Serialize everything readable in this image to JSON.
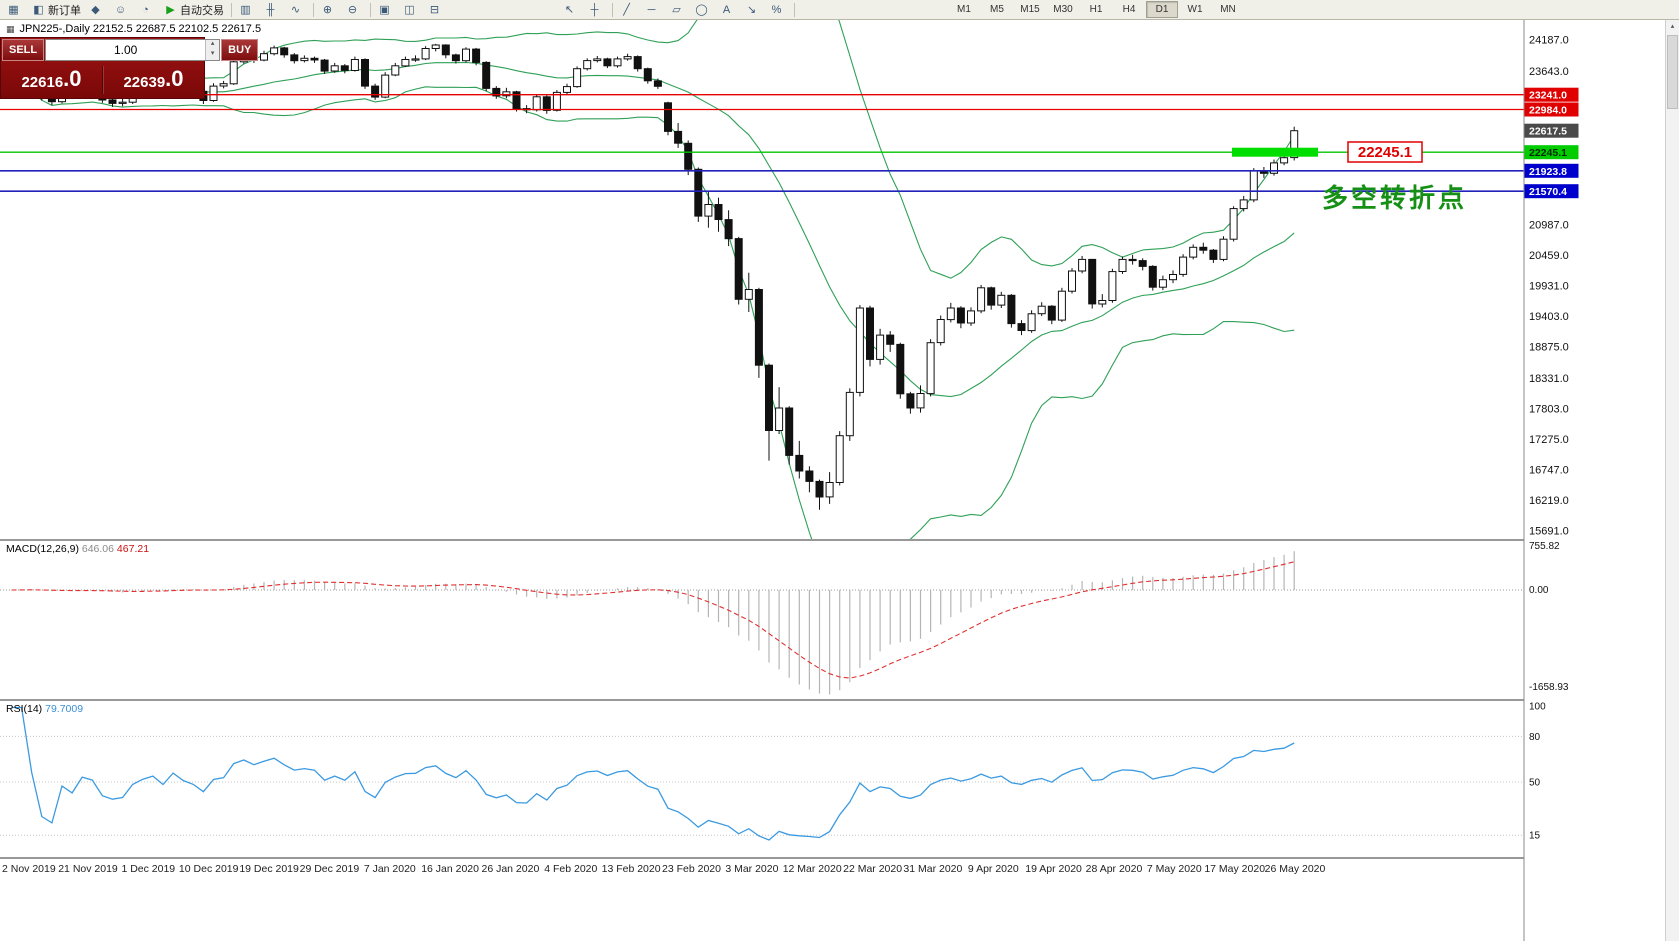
{
  "icons": {
    "chart_header": "▦",
    "spin_up": "▴",
    "spin_down": "▾",
    "scrollbar_up": "▴"
  },
  "toolbar": {
    "buttons": [
      {
        "name": "new-chart-button",
        "icon": "new-chart-icon",
        "glyph": "▦"
      },
      {
        "name": "new-order-button",
        "icon": "new-order-icon",
        "glyph": "◧",
        "label": "新订单"
      },
      {
        "name": "favorites-button",
        "icon": "diamond-icon",
        "glyph": "◆"
      },
      {
        "name": "accounts-button",
        "icon": "user-icon",
        "glyph": "☺"
      },
      {
        "name": "history-button",
        "icon": "clock-icon",
        "glyph": "◔"
      },
      {
        "name": "autotrading-button",
        "icon": "play-icon",
        "glyph": "▶",
        "label": "自动交易",
        "glyph_color": "#18a018"
      },
      {
        "sep": true
      },
      {
        "name": "bar-chart-type-button",
        "icon": "bar-chart-icon",
        "glyph": "▥"
      },
      {
        "name": "candlestick-chart-type-button",
        "icon": "candlestick-icon",
        "glyph": "╫"
      },
      {
        "name": "line-chart-type-button",
        "icon": "line-chart-icon",
        "glyph": "∿"
      },
      {
        "sep": true
      },
      {
        "name": "zoom-in-button",
        "icon": "zoom-in-icon",
        "glyph": "⊕"
      },
      {
        "name": "zoom-out-button",
        "icon": "zoom-out-icon",
        "glyph": "⊖"
      },
      {
        "sep": true
      },
      {
        "name": "tile-windows-button",
        "icon": "tile-windows-icon",
        "glyph": "▣"
      },
      {
        "name": "cascade-windows-button",
        "icon": "cascade-windows-icon",
        "glyph": "◫"
      },
      {
        "name": "arrange-windows-button",
        "icon": "arrange-windows-icon",
        "glyph": "⊟"
      },
      {
        "spacer": 110
      },
      {
        "name": "cursor-tool-button",
        "icon": "cursor-icon",
        "glyph": "↖"
      },
      {
        "name": "crosshair-tool-button",
        "icon": "crosshair-icon",
        "glyph": "┼"
      },
      {
        "sep": true
      },
      {
        "name": "trendline-tool-button",
        "icon": "trendline-icon",
        "glyph": "╱"
      },
      {
        "name": "horizontal-line-tool-button",
        "icon": "horizontal-line-icon",
        "glyph": "─"
      },
      {
        "name": "channel-tool-button",
        "icon": "channel-icon",
        "glyph": "▱"
      },
      {
        "name": "ellipse-tool-button",
        "icon": "ellipse-icon",
        "glyph": "◯"
      },
      {
        "name": "text-tool-button",
        "icon": "text-icon",
        "glyph": "A"
      },
      {
        "name": "arrows-tool-button",
        "icon": "arrow-icon",
        "glyph": "↘"
      },
      {
        "name": "fibonacci-tool-button",
        "icon": "fibonacci-icon",
        "glyph": "%"
      },
      {
        "sep": true
      }
    ],
    "timeframes": [
      "M1",
      "M5",
      "M15",
      "M30",
      "H1",
      "H4",
      "D1",
      "W1",
      "MN"
    ],
    "active_timeframe": "D1"
  },
  "one_click": {
    "sell_label": "SELL",
    "buy_label": "BUY",
    "volume": "1.00",
    "sell_price": "22616.0",
    "buy_price": "22639.0"
  },
  "chart": {
    "header": "JPN225-,Daily  22152.5 22687.5 22102.5 22617.5"
  },
  "annotations": {
    "price_flag": "22245.1",
    "turning_point": "多空转折点",
    "flag_color": "#e00000",
    "turning_point_color": "#159015",
    "highlight_color": "#00dd00"
  },
  "price_axis": {
    "gridline_labels": [
      "24187.0",
      "23643.0",
      "20987.0",
      "20459.0",
      "19931.0",
      "19403.0",
      "18875.0",
      "18331.0",
      "17803.0",
      "17275.0",
      "16747.0",
      "16219.0",
      "15691.0"
    ],
    "tags": [
      {
        "t": "23241.0",
        "bg": "#e00000",
        "fg": "#ffffff"
      },
      {
        "t": "22984.0",
        "bg": "#e00000",
        "fg": "#ffffff"
      },
      {
        "t": "22617.5",
        "bg": "#4a4a4a",
        "fg": "#ffffff"
      },
      {
        "t": "22245.1",
        "bg": "#00cc00",
        "fg": "#002b00"
      },
      {
        "t": "21923.8",
        "bg": "#0000cc",
        "fg": "#ffffff"
      },
      {
        "t": "21570.4",
        "bg": "#0000cc",
        "fg": "#ffffff"
      }
    ]
  },
  "levels": [
    {
      "price": 23241.0,
      "color": "#e80000",
      "width": 1.3
    },
    {
      "price": 22984.0,
      "color": "#e80000",
      "width": 1.3
    },
    {
      "price": 22245.1,
      "color": "#00c400",
      "width": 1.3
    },
    {
      "price": 21923.8,
      "color": "#2222bb",
      "width": 1.6
    },
    {
      "price": 21570.4,
      "color": "#2222bb",
      "width": 1.6
    }
  ],
  "chart_data": {
    "type": "candlestick",
    "symbol": "JPN225-",
    "timeframe": "Daily",
    "title": "JPN225-,Daily",
    "current_bar": {
      "open": 22152.5,
      "high": 22687.5,
      "low": 22102.5,
      "close": 22617.5
    },
    "y_axis": {
      "min": 15691.0,
      "max": 24187.0
    },
    "x_labels": [
      "2 Nov 2019",
      "21 Nov 2019",
      "1 Dec 2019",
      "10 Dec 2019",
      "19 Dec 2019",
      "29 Dec 2019",
      "7 Jan 2020",
      "16 Jan 2020",
      "26 Jan 2020",
      "4 Feb 2020",
      "13 Feb 2020",
      "23 Feb 2020",
      "3 Mar 2020",
      "12 Mar 2020",
      "22 Mar 2020",
      "31 Mar 2020",
      "9 Apr 2020",
      "19 Apr 2020",
      "28 Apr 2020",
      "7 May 2020",
      "17 May 2020",
      "26 May 2020"
    ],
    "overlays": {
      "bollinger_bands": {
        "period": 20,
        "deviation": 2,
        "color": "#2fa057"
      }
    },
    "candles": [
      [
        23300,
        23390,
        23260,
        23330
      ],
      [
        23330,
        23470,
        23300,
        23420
      ],
      [
        23420,
        23460,
        23310,
        23350
      ],
      [
        23350,
        23390,
        23140,
        23180
      ],
      [
        23180,
        23230,
        23060,
        23120
      ],
      [
        23120,
        23350,
        23090,
        23300
      ],
      [
        23300,
        23340,
        23190,
        23240
      ],
      [
        23240,
        23430,
        23220,
        23380
      ],
      [
        23380,
        23440,
        23300,
        23350
      ],
      [
        23350,
        23380,
        23100,
        23150
      ],
      [
        23150,
        23190,
        23030,
        23090
      ],
      [
        23090,
        23170,
        23040,
        23110
      ],
      [
        23110,
        23340,
        23080,
        23290
      ],
      [
        23290,
        23420,
        23250,
        23380
      ],
      [
        23380,
        23500,
        23350,
        23440
      ],
      [
        23440,
        23470,
        23240,
        23290
      ],
      [
        23290,
        23570,
        23270,
        23520
      ],
      [
        23520,
        23550,
        23330,
        23380
      ],
      [
        23380,
        23420,
        23250,
        23300
      ],
      [
        23300,
        23330,
        23080,
        23140
      ],
      [
        23140,
        23440,
        23120,
        23390
      ],
      [
        23390,
        23480,
        23350,
        23430
      ],
      [
        23430,
        23860,
        23410,
        23810
      ],
      [
        23810,
        23980,
        23780,
        23930
      ],
      [
        23930,
        23960,
        23790,
        23840
      ],
      [
        23840,
        24000,
        23820,
        23950
      ],
      [
        23950,
        24090,
        23920,
        24050
      ],
      [
        24050,
        24070,
        23880,
        23930
      ],
      [
        23930,
        23960,
        23780,
        23830
      ],
      [
        23830,
        23920,
        23800,
        23870
      ],
      [
        23870,
        23900,
        23790,
        23840
      ],
      [
        23840,
        23860,
        23600,
        23650
      ],
      [
        23650,
        23790,
        23620,
        23740
      ],
      [
        23740,
        23770,
        23610,
        23660
      ],
      [
        23660,
        23900,
        23640,
        23850
      ],
      [
        23850,
        23870,
        23340,
        23390
      ],
      [
        23390,
        23430,
        23150,
        23200
      ],
      [
        23200,
        23630,
        23180,
        23580
      ],
      [
        23580,
        23790,
        23560,
        23740
      ],
      [
        23740,
        23900,
        23720,
        23850
      ],
      [
        23850,
        23920,
        23810,
        23860
      ],
      [
        23860,
        24080,
        23840,
        24040
      ],
      [
        24040,
        24120,
        23990,
        24100
      ],
      [
        24100,
        24115,
        23870,
        23930
      ],
      [
        23930,
        23950,
        23780,
        23830
      ],
      [
        23830,
        24060,
        23800,
        24030
      ],
      [
        24030,
        24050,
        23750,
        23800
      ],
      [
        23800,
        23820,
        23300,
        23350
      ],
      [
        23350,
        23390,
        23170,
        23220
      ],
      [
        23220,
        23360,
        23180,
        23290
      ],
      [
        23290,
        23310,
        22950,
        23000
      ],
      [
        23000,
        23060,
        22920,
        22980
      ],
      [
        22980,
        23250,
        22950,
        23205
      ],
      [
        23205,
        23230,
        22910,
        22970
      ],
      [
        22970,
        23320,
        22950,
        23280
      ],
      [
        23280,
        23430,
        23250,
        23380
      ],
      [
        23380,
        23730,
        23360,
        23690
      ],
      [
        23690,
        23870,
        23660,
        23830
      ],
      [
        23830,
        23910,
        23800,
        23860
      ],
      [
        23860,
        23880,
        23700,
        23740
      ],
      [
        23740,
        23900,
        23710,
        23860
      ],
      [
        23860,
        23950,
        23830,
        23900
      ],
      [
        23900,
        23920,
        23640,
        23690
      ],
      [
        23690,
        23710,
        23430,
        23480
      ],
      [
        23480,
        23520,
        23340,
        23386
      ],
      [
        23100,
        23120,
        22540,
        22605
      ],
      [
        22605,
        22750,
        22320,
        22400
      ],
      [
        22400,
        22450,
        21850,
        21950
      ],
      [
        21950,
        21980,
        21040,
        21140
      ],
      [
        21140,
        21560,
        20940,
        21340
      ],
      [
        21340,
        21460,
        20870,
        21080
      ],
      [
        21080,
        21240,
        20620,
        20750
      ],
      [
        20750,
        20780,
        19610,
        19700
      ],
      [
        19700,
        20160,
        19480,
        19870
      ],
      [
        19870,
        19900,
        18340,
        18560
      ],
      [
        18560,
        18590,
        16910,
        17430
      ],
      [
        17430,
        18180,
        17370,
        17820
      ],
      [
        17820,
        17850,
        16840,
        17000
      ],
      [
        17000,
        17250,
        16600,
        16730
      ],
      [
        16730,
        16810,
        16360,
        16550
      ],
      [
        16550,
        16580,
        16060,
        16280
      ],
      [
        16280,
        16710,
        16160,
        16530
      ],
      [
        16530,
        17420,
        16480,
        17340
      ],
      [
        17340,
        18160,
        17250,
        18090
      ],
      [
        18090,
        19600,
        18020,
        19550
      ],
      [
        19550,
        19590,
        18540,
        18660
      ],
      [
        18660,
        19190,
        18570,
        19080
      ],
      [
        19080,
        19150,
        18790,
        18920
      ],
      [
        18920,
        18950,
        17980,
        18065
      ],
      [
        18065,
        18100,
        17720,
        17820
      ],
      [
        17820,
        18210,
        17740,
        18070
      ],
      [
        18070,
        19010,
        18020,
        18950
      ],
      [
        18950,
        19420,
        18900,
        19350
      ],
      [
        19350,
        19640,
        19300,
        19550
      ],
      [
        19550,
        19580,
        19200,
        19290
      ],
      [
        19290,
        19560,
        19240,
        19500
      ],
      [
        19500,
        19950,
        19460,
        19900
      ],
      [
        19900,
        19920,
        19520,
        19600
      ],
      [
        19600,
        19830,
        19550,
        19770
      ],
      [
        19770,
        19790,
        19210,
        19280
      ],
      [
        19280,
        19340,
        19080,
        19160
      ],
      [
        19160,
        19510,
        19120,
        19450
      ],
      [
        19450,
        19650,
        19410,
        19580
      ],
      [
        19580,
        19600,
        19270,
        19340
      ],
      [
        19340,
        19900,
        19310,
        19840
      ],
      [
        19840,
        20240,
        19800,
        20190
      ],
      [
        20190,
        20450,
        20150,
        20390
      ],
      [
        20390,
        20400,
        19540,
        19620
      ],
      [
        19620,
        19790,
        19560,
        19680
      ],
      [
        19680,
        20230,
        19640,
        20180
      ],
      [
        20180,
        20440,
        20140,
        20390
      ],
      [
        20390,
        20470,
        20300,
        20370
      ],
      [
        20370,
        20410,
        20200,
        20270
      ],
      [
        20270,
        20290,
        19850,
        19910
      ],
      [
        19910,
        20110,
        19860,
        20040
      ],
      [
        20040,
        20200,
        19980,
        20130
      ],
      [
        20130,
        20480,
        20090,
        20430
      ],
      [
        20430,
        20650,
        20390,
        20600
      ],
      [
        20600,
        20680,
        20490,
        20550
      ],
      [
        20550,
        20570,
        20330,
        20390
      ],
      [
        20390,
        20790,
        20360,
        20740
      ],
      [
        20740,
        21310,
        20700,
        21270
      ],
      [
        21270,
        21490,
        21220,
        21420
      ],
      [
        21420,
        21970,
        21380,
        21920
      ],
      [
        21920,
        21990,
        21800,
        21880
      ],
      [
        21880,
        22120,
        21840,
        22060
      ],
      [
        22060,
        22220,
        22020,
        22150
      ],
      [
        22152.5,
        22687.5,
        22102.5,
        22617.5
      ]
    ],
    "indicators": [
      {
        "type": "MACD",
        "name": "MACD(12,26,9)",
        "value_main": "646.06",
        "value_signal": "467.21",
        "scale_labels": [
          "755.82",
          "0.00",
          "-1658.93"
        ],
        "histogram_color": "#b5b5b5",
        "signal_color": "#e03030"
      },
      {
        "type": "RSI",
        "name": "RSI(14)",
        "value": "79.7009",
        "scale_labels": [
          "100",
          "80",
          "50",
          "15"
        ],
        "levels": [
          80,
          50,
          15
        ],
        "line_color": "#3b9ae1"
      }
    ]
  }
}
